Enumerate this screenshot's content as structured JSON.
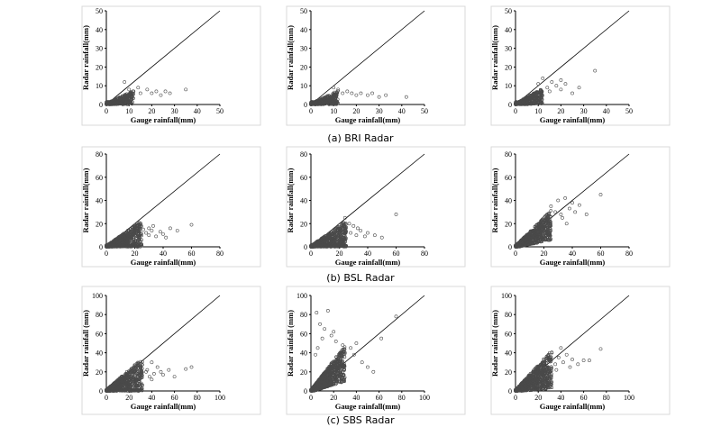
{
  "captions": [
    "(a) BRI Radar",
    "(b) BSL Radar",
    "(c) SBS Radar"
  ],
  "chart_data": [
    {
      "type": "scatter",
      "group": 0,
      "xlabel": "Gauge rainfall(mm)",
      "ylabel": "Radar rainfall(mm)",
      "xlim": [
        0,
        50
      ],
      "ylim": [
        0,
        50
      ],
      "xticks": [
        0,
        10,
        20,
        30,
        40,
        50
      ],
      "yticks": [
        0,
        10,
        20,
        30,
        40,
        50
      ],
      "reference_line": "1:1",
      "grid": false,
      "cluster": {
        "xmax": 12,
        "slope": 0.25,
        "n": 420
      },
      "points": [
        [
          8,
          12
        ],
        [
          12,
          7
        ],
        [
          15,
          6
        ],
        [
          18,
          8
        ],
        [
          20,
          6
        ],
        [
          22,
          7
        ],
        [
          24,
          5
        ],
        [
          26,
          7
        ],
        [
          28,
          6
        ],
        [
          35,
          8
        ],
        [
          14,
          9
        ],
        [
          10,
          8
        ]
      ]
    },
    {
      "type": "scatter",
      "group": 0,
      "xlabel": "Gauge rainfall(mm)",
      "ylabel": "Radar rainfall(mm)",
      "xlim": [
        0,
        50
      ],
      "ylim": [
        0,
        50
      ],
      "xticks": [
        0,
        10,
        20,
        30,
        40,
        50
      ],
      "yticks": [
        0,
        10,
        20,
        30,
        40,
        50
      ],
      "reference_line": "1:1",
      "grid": false,
      "cluster": {
        "xmax": 12,
        "slope": 0.25,
        "n": 420
      },
      "points": [
        [
          10,
          9
        ],
        [
          14,
          6
        ],
        [
          16,
          7
        ],
        [
          20,
          5
        ],
        [
          22,
          6
        ],
        [
          25,
          5
        ],
        [
          27,
          6
        ],
        [
          30,
          4
        ],
        [
          33,
          5
        ],
        [
          42,
          4
        ],
        [
          12,
          8
        ],
        [
          18,
          6
        ]
      ]
    },
    {
      "type": "scatter",
      "group": 0,
      "xlabel": "Gauge rainfall(mm)",
      "ylabel": "Radar rainfall(mm)",
      "xlim": [
        0,
        50
      ],
      "ylim": [
        0,
        50
      ],
      "xticks": [
        0,
        10,
        20,
        30,
        40,
        50
      ],
      "yticks": [
        0,
        10,
        20,
        30,
        40,
        50
      ],
      "reference_line": "1:1",
      "grid": false,
      "cluster": {
        "xmax": 12,
        "slope": 0.35,
        "n": 420
      },
      "points": [
        [
          10,
          11
        ],
        [
          12,
          14
        ],
        [
          14,
          9
        ],
        [
          16,
          12
        ],
        [
          18,
          10
        ],
        [
          20,
          8
        ],
        [
          22,
          11
        ],
        [
          25,
          6
        ],
        [
          28,
          9
        ],
        [
          35,
          18
        ],
        [
          15,
          7
        ],
        [
          20,
          13
        ]
      ]
    },
    {
      "type": "scatter",
      "group": 1,
      "xlabel": "Gauge rainfall(mm)",
      "ylabel": "Radar rainfall(mm)",
      "xlim": [
        0,
        80
      ],
      "ylim": [
        0,
        80
      ],
      "xticks": [
        0,
        20,
        40,
        60,
        80
      ],
      "yticks": [
        0,
        20,
        40,
        60,
        80
      ],
      "reference_line": "1:1",
      "grid": false,
      "cluster": {
        "xmax": 25,
        "slope": 0.35,
        "n": 900
      },
      "points": [
        [
          28,
          12
        ],
        [
          30,
          10
        ],
        [
          32,
          14
        ],
        [
          35,
          9
        ],
        [
          38,
          13
        ],
        [
          40,
          11
        ],
        [
          42,
          8
        ],
        [
          45,
          16
        ],
        [
          50,
          14
        ],
        [
          60,
          19
        ],
        [
          33,
          18
        ],
        [
          26,
          15
        ],
        [
          30,
          16
        ]
      ]
    },
    {
      "type": "scatter",
      "group": 1,
      "xlabel": "Gauge rainfall(mm)",
      "ylabel": "Radar rainfall(mm)",
      "xlim": [
        0,
        80
      ],
      "ylim": [
        0,
        80
      ],
      "xticks": [
        0,
        20,
        40,
        60,
        80
      ],
      "yticks": [
        0,
        20,
        40,
        60,
        80
      ],
      "reference_line": "1:1",
      "grid": false,
      "cluster": {
        "xmax": 25,
        "slope": 0.35,
        "n": 900
      },
      "points": [
        [
          24,
          25
        ],
        [
          28,
          12
        ],
        [
          30,
          18
        ],
        [
          32,
          10
        ],
        [
          35,
          14
        ],
        [
          38,
          9
        ],
        [
          40,
          12
        ],
        [
          45,
          10
        ],
        [
          50,
          8
        ],
        [
          60,
          28
        ],
        [
          27,
          20
        ],
        [
          33,
          16
        ]
      ]
    },
    {
      "type": "scatter",
      "group": 1,
      "xlabel": "Gauge rainfall(mm)",
      "ylabel": "Radar rainfall(mm)",
      "xlim": [
        0,
        80
      ],
      "ylim": [
        0,
        80
      ],
      "xticks": [
        0,
        20,
        40,
        60,
        80
      ],
      "yticks": [
        0,
        20,
        40,
        60,
        80
      ],
      "reference_line": "1:1",
      "grid": false,
      "cluster": {
        "xmax": 25,
        "slope": 0.7,
        "n": 900
      },
      "points": [
        [
          25,
          35
        ],
        [
          28,
          30
        ],
        [
          30,
          40
        ],
        [
          32,
          28
        ],
        [
          35,
          42
        ],
        [
          38,
          33
        ],
        [
          40,
          38
        ],
        [
          42,
          30
        ],
        [
          45,
          36
        ],
        [
          50,
          28
        ],
        [
          60,
          45
        ],
        [
          33,
          25
        ],
        [
          36,
          20
        ]
      ]
    },
    {
      "type": "scatter",
      "group": 2,
      "xlabel": "Gauge rainfall(mm)",
      "ylabel": "Radar rainfall (mm)",
      "xlim": [
        0,
        100
      ],
      "ylim": [
        0,
        100
      ],
      "xticks": [
        0,
        20,
        40,
        60,
        80,
        100
      ],
      "yticks": [
        0,
        20,
        40,
        60,
        80,
        100
      ],
      "reference_line": "1:1",
      "grid": false,
      "cluster": {
        "xmax": 32,
        "slope": 0.4,
        "n": 900
      },
      "points": [
        [
          35,
          20
        ],
        [
          38,
          15
        ],
        [
          40,
          30
        ],
        [
          42,
          18
        ],
        [
          45,
          25
        ],
        [
          48,
          20
        ],
        [
          50,
          17
        ],
        [
          55,
          22
        ],
        [
          60,
          15
        ],
        [
          70,
          23
        ],
        [
          75,
          25
        ],
        [
          40,
          12
        ],
        [
          36,
          22
        ]
      ]
    },
    {
      "type": "scatter",
      "group": 2,
      "xlabel": "Gauge rainfall(mm)",
      "ylabel": "Radar rainfall (mm)",
      "xlim": [
        0,
        100
      ],
      "ylim": [
        0,
        100
      ],
      "xticks": [
        0,
        20,
        40,
        60,
        80,
        100
      ],
      "yticks": [
        0,
        20,
        40,
        60,
        80,
        100
      ],
      "reference_line": "1:1",
      "grid": false,
      "cluster": {
        "xmax": 30,
        "slope": 0.9,
        "n": 1000
      },
      "points": [
        [
          5,
          82
        ],
        [
          15,
          84
        ],
        [
          8,
          70
        ],
        [
          12,
          65
        ],
        [
          18,
          58
        ],
        [
          22,
          52
        ],
        [
          28,
          48
        ],
        [
          30,
          40
        ],
        [
          35,
          45
        ],
        [
          38,
          38
        ],
        [
          40,
          50
        ],
        [
          45,
          30
        ],
        [
          50,
          25
        ],
        [
          55,
          20
        ],
        [
          62,
          55
        ],
        [
          75,
          78
        ],
        [
          10,
          55
        ],
        [
          20,
          62
        ],
        [
          6,
          45
        ],
        [
          4,
          38
        ]
      ]
    },
    {
      "type": "scatter",
      "group": 2,
      "xlabel": "Gauge rainfall(mm)",
      "ylabel": "Radar rainfall (mm)",
      "xlim": [
        0,
        100
      ],
      "ylim": [
        0,
        100
      ],
      "xticks": [
        0,
        20,
        40,
        60,
        80,
        100
      ],
      "yticks": [
        0,
        20,
        40,
        60,
        80,
        100
      ],
      "reference_line": "1:1",
      "grid": false,
      "cluster": {
        "xmax": 32,
        "slope": 0.65,
        "n": 1000
      },
      "points": [
        [
          32,
          40
        ],
        [
          35,
          28
        ],
        [
          38,
          35
        ],
        [
          40,
          45
        ],
        [
          42,
          30
        ],
        [
          45,
          38
        ],
        [
          48,
          25
        ],
        [
          50,
          33
        ],
        [
          55,
          28
        ],
        [
          60,
          32
        ],
        [
          65,
          32
        ],
        [
          75,
          44
        ],
        [
          36,
          22
        ],
        [
          30,
          35
        ]
      ]
    }
  ]
}
